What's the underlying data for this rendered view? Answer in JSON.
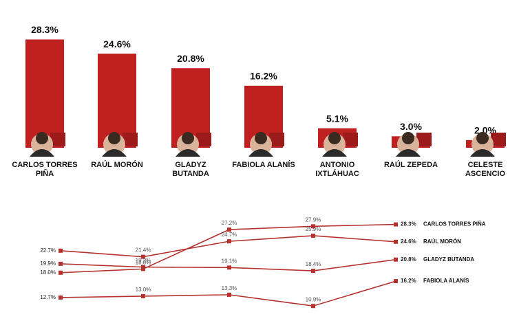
{
  "chart_data": [
    {
      "type": "bar",
      "categories": [
        "CARLOS TORRES PIÑA",
        "RAÚL MORÓN",
        "GLADYZ BUTANDA",
        "FABIOLA ALANÍS",
        "ANTONIO IXTLÁHUAC",
        "RAÚL ZEPEDA",
        "CELESTE ASCENCIO"
      ],
      "values": [
        28.3,
        24.6,
        20.8,
        16.2,
        5.1,
        3.0,
        2.0
      ],
      "value_labels": [
        "28.3%",
        "24.6%",
        "20.8%",
        "16.2%",
        "5.1%",
        "3.0%",
        "2.0%"
      ],
      "color": "#c0201f",
      "ylim": [
        0,
        30
      ]
    },
    {
      "type": "line",
      "categories": [
        null,
        null,
        null,
        null,
        null
      ],
      "ylim": [
        8,
        30
      ],
      "series": [
        {
          "name": "CARLOS TORRES PIÑA",
          "color": "#b5322e",
          "values": [
            18.0,
            18.8,
            27.2,
            27.9,
            28.3
          ],
          "value_labels": [
            "18.0%",
            "18.8%",
            "27.2%",
            "27.9%",
            "28.3%"
          ]
        },
        {
          "name": "RAÚL MORÓN",
          "color": "#b5322e",
          "values": [
            22.7,
            21.4,
            24.7,
            25.9,
            24.6
          ],
          "value_labels": [
            "22.7%",
            "21.4%",
            "24.7%",
            "25.9%",
            "24.6%"
          ]
        },
        {
          "name": "GLADYZ BUTANDA",
          "color": "#b5322e",
          "values": [
            19.9,
            19.2,
            19.1,
            18.4,
            20.8
          ],
          "value_labels": [
            "19.9%",
            "19.2%",
            "19.1%",
            "18.4%",
            "20.8%"
          ]
        },
        {
          "name": "FABIOLA ALANÍS",
          "color": "#b5322e",
          "values": [
            12.7,
            13.0,
            13.3,
            10.9,
            16.2
          ],
          "value_labels": [
            "12.7%",
            "13.0%",
            "13.3%",
            "10.9%",
            "16.2%"
          ]
        }
      ]
    }
  ]
}
